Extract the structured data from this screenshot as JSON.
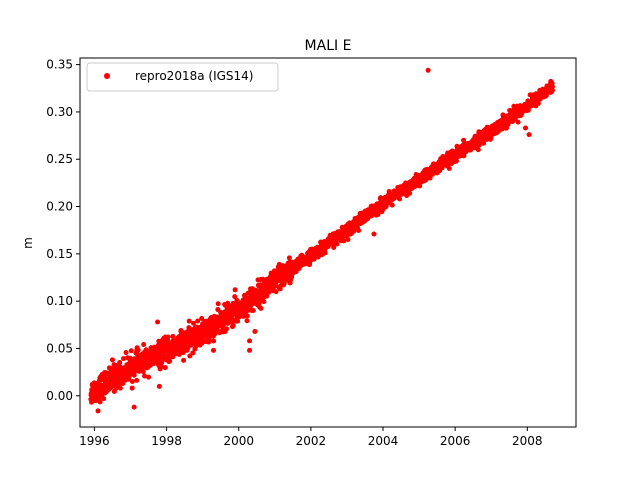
{
  "chart_data": {
    "type": "scatter",
    "title": "MALI E",
    "xlabel": "",
    "ylabel": "m",
    "xlim": [
      1995.6,
      2009.35
    ],
    "ylim": [
      -0.033,
      0.357
    ],
    "xticks": [
      1996,
      1998,
      2000,
      2002,
      2004,
      2006,
      2008
    ],
    "xtick_labels": [
      "1996",
      "1998",
      "2000",
      "2002",
      "2004",
      "2006",
      "2008"
    ],
    "yticks": [
      0.0,
      0.05,
      0.1,
      0.15,
      0.2,
      0.25,
      0.3,
      0.35
    ],
    "ytick_labels": [
      "0.00",
      "0.05",
      "0.10",
      "0.15",
      "0.20",
      "0.25",
      "0.30",
      "0.35"
    ],
    "grid": false,
    "legend_position": "top-left",
    "series": [
      {
        "name": "repro2018a (IGS14)",
        "color": "#ff0000",
        "marker": "circle",
        "trend_points": [
          {
            "x": 1995.9,
            "y": 0.003
          },
          {
            "x": 1997.0,
            "y": 0.03
          },
          {
            "x": 1998.0,
            "y": 0.047
          },
          {
            "x": 1999.0,
            "y": 0.066
          },
          {
            "x": 2000.0,
            "y": 0.091
          },
          {
            "x": 2001.0,
            "y": 0.121
          },
          {
            "x": 2002.0,
            "y": 0.148
          },
          {
            "x": 2003.0,
            "y": 0.175
          },
          {
            "x": 2004.0,
            "y": 0.203
          },
          {
            "x": 2005.0,
            "y": 0.228
          },
          {
            "x": 2006.0,
            "y": 0.254
          },
          {
            "x": 2007.0,
            "y": 0.28
          },
          {
            "x": 2008.0,
            "y": 0.307
          },
          {
            "x": 2008.7,
            "y": 0.327
          }
        ],
        "outliers": [
          {
            "x": 2005.25,
            "y": 0.344
          },
          {
            "x": 2008.05,
            "y": 0.276
          },
          {
            "x": 2007.95,
            "y": 0.283
          },
          {
            "x": 2003.75,
            "y": 0.171
          },
          {
            "x": 1997.1,
            "y": -0.012
          },
          {
            "x": 1997.8,
            "y": 0.01
          },
          {
            "x": 1997.75,
            "y": 0.078
          },
          {
            "x": 1998.4,
            "y": 0.069
          },
          {
            "x": 1999.3,
            "y": 0.048
          },
          {
            "x": 2000.3,
            "y": 0.058
          },
          {
            "x": 2000.3,
            "y": 0.048
          },
          {
            "x": 2000.45,
            "y": 0.068
          },
          {
            "x": 2001.15,
            "y": 0.113
          },
          {
            "x": 1996.5,
            "y": 0.038
          },
          {
            "x": 1996.1,
            "y": -0.016
          },
          {
            "x": 1999.9,
            "y": 0.112
          }
        ]
      }
    ]
  }
}
